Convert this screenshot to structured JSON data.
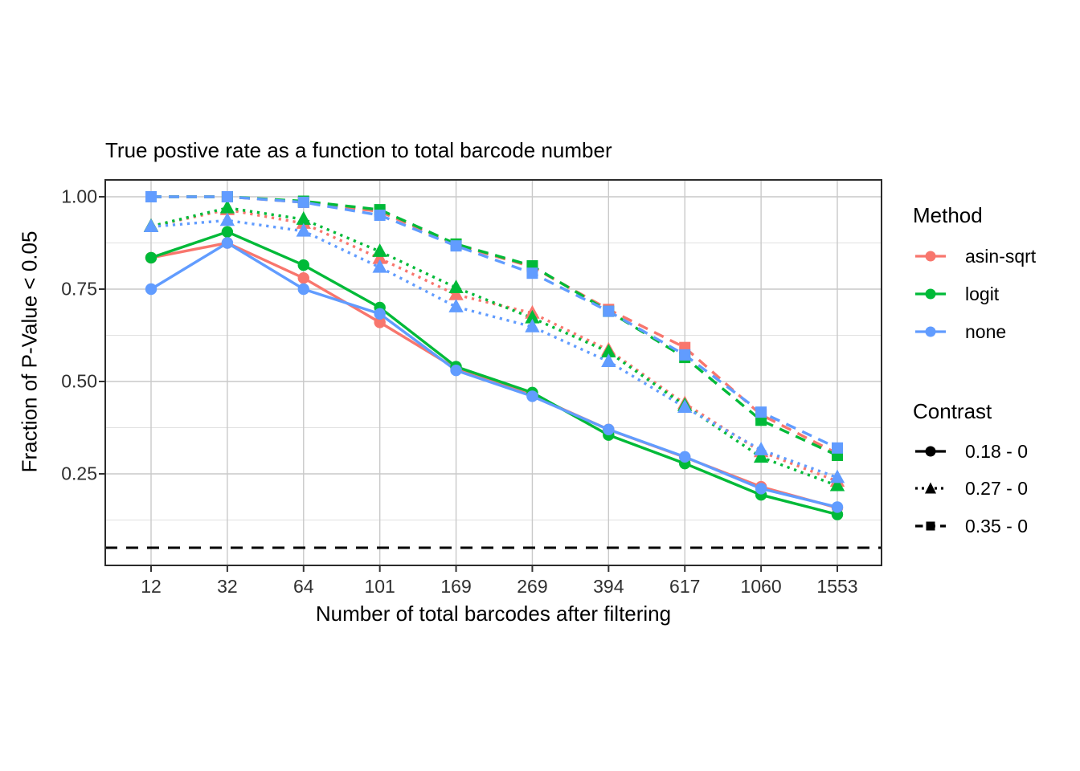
{
  "title": "True postive rate as a function to total barcode number",
  "x_axis": {
    "label": "Number of total barcodes after filtering",
    "ticks": [
      "12",
      "32",
      "64",
      "101",
      "169",
      "269",
      "394",
      "617",
      "1060",
      "1553"
    ]
  },
  "y_axis": {
    "label": "Fraction of P-Value < 0.05",
    "ticks": [
      {
        "label": "1.00",
        "value": 1.0
      },
      {
        "label": "0.75",
        "value": 0.75
      },
      {
        "label": "0.50",
        "value": 0.5
      },
      {
        "label": "0.25",
        "value": 0.25
      }
    ],
    "minor_ticks": [
      0.875,
      0.625,
      0.375,
      0.125
    ]
  },
  "reference_line": {
    "y": 0.05,
    "linetype": "dashed",
    "color": "#000000"
  },
  "colors": {
    "asin-sqrt": "#F8766D",
    "logit": "#00BA38",
    "none": "#619CFF",
    "grid_major": "#C9C9C9",
    "grid_minor": "#E1E1E1",
    "panel_border": "#2B2B2B",
    "tick_text": "#303030",
    "panel_background": "#FFFFFF"
  },
  "legend": {
    "position": "right",
    "method": {
      "title": "Method",
      "items": [
        {
          "label": "asin-sqrt",
          "color": "#F8766D"
        },
        {
          "label": "logit",
          "color": "#00BA38"
        },
        {
          "label": "none",
          "color": "#619CFF"
        }
      ]
    },
    "contrast": {
      "title": "Contrast",
      "items": [
        {
          "label": "0.18 - 0",
          "marker": "circle",
          "linetype": "solid"
        },
        {
          "label": "0.27 - 0",
          "marker": "triangle",
          "linetype": "dotted"
        },
        {
          "label": "0.35 - 0",
          "marker": "square",
          "linetype": "dashed"
        }
      ]
    }
  },
  "chart_data": {
    "type": "line",
    "x_categories": [
      12,
      32,
      64,
      101,
      169,
      269,
      394,
      617,
      1060,
      1553
    ],
    "x_scale": "discrete",
    "ylim": [
      0,
      1.05
    ],
    "grid": true,
    "legend_position": "right",
    "series": [
      {
        "name": "asin-sqrt / 0.18 - 0",
        "method": "asin-sqrt",
        "contrast": "0.18 - 0",
        "color": "#F8766D",
        "marker": "circle",
        "linetype": "solid",
        "values": [
          0.835,
          0.875,
          0.78,
          0.66,
          0.535,
          0.462,
          0.37,
          0.295,
          0.215,
          0.158
        ]
      },
      {
        "name": "asin-sqrt / 0.27 - 0",
        "method": "asin-sqrt",
        "contrast": "0.27 - 0",
        "color": "#F8766D",
        "marker": "triangle",
        "linetype": "dotted",
        "values": [
          0.92,
          0.965,
          0.928,
          0.833,
          0.735,
          0.685,
          0.585,
          0.44,
          0.31,
          0.23
        ]
      },
      {
        "name": "asin-sqrt / 0.35 - 0",
        "method": "asin-sqrt",
        "contrast": "0.35 - 0",
        "color": "#F8766D",
        "marker": "square",
        "linetype": "dashed",
        "values": [
          1.0,
          1.0,
          0.985,
          0.96,
          0.87,
          0.81,
          0.695,
          0.592,
          0.41,
          0.305
        ]
      },
      {
        "name": "logit / 0.18 - 0",
        "method": "logit",
        "contrast": "0.18 - 0",
        "color": "#00BA38",
        "marker": "circle",
        "linetype": "solid",
        "values": [
          0.835,
          0.905,
          0.815,
          0.7,
          0.54,
          0.47,
          0.355,
          0.278,
          0.193,
          0.14
        ]
      },
      {
        "name": "logit / 0.27 - 0",
        "method": "logit",
        "contrast": "0.27 - 0",
        "color": "#00BA38",
        "marker": "triangle",
        "linetype": "dotted",
        "values": [
          0.92,
          0.97,
          0.939,
          0.852,
          0.754,
          0.672,
          0.58,
          0.435,
          0.295,
          0.218
        ]
      },
      {
        "name": "logit / 0.35 - 0",
        "method": "logit",
        "contrast": "0.35 - 0",
        "color": "#00BA38",
        "marker": "square",
        "linetype": "dashed",
        "values": [
          1.0,
          1.0,
          0.988,
          0.965,
          0.872,
          0.813,
          0.69,
          0.565,
          0.395,
          0.3
        ]
      },
      {
        "name": "none / 0.18 - 0",
        "method": "none",
        "contrast": "0.18 - 0",
        "color": "#619CFF",
        "marker": "circle",
        "linetype": "solid",
        "values": [
          0.75,
          0.875,
          0.75,
          0.683,
          0.53,
          0.46,
          0.37,
          0.296,
          0.21,
          0.16
        ]
      },
      {
        "name": "none / 0.27 - 0",
        "method": "none",
        "contrast": "0.27 - 0",
        "color": "#619CFF",
        "marker": "triangle",
        "linetype": "dotted",
        "values": [
          0.919,
          0.936,
          0.907,
          0.809,
          0.702,
          0.648,
          0.554,
          0.43,
          0.315,
          0.24
        ]
      },
      {
        "name": "none / 0.35 - 0",
        "method": "none",
        "contrast": "0.35 - 0",
        "color": "#619CFF",
        "marker": "square",
        "linetype": "dashed",
        "values": [
          1.0,
          1.0,
          0.985,
          0.95,
          0.867,
          0.793,
          0.69,
          0.572,
          0.417,
          0.32
        ]
      }
    ]
  }
}
